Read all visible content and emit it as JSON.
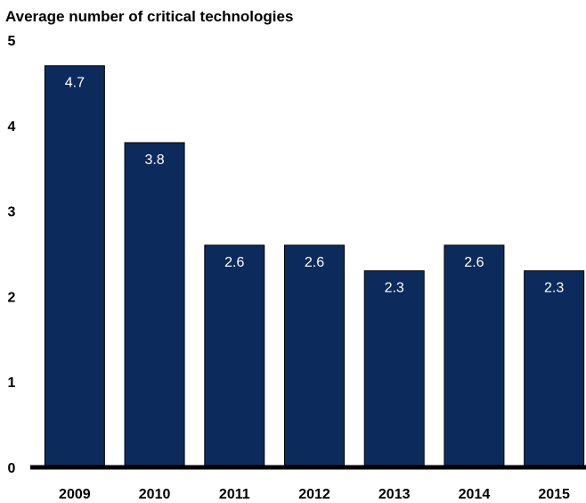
{
  "chart_data": {
    "type": "bar",
    "title": "",
    "ylabel": "Average number of critical technologies",
    "xlabel": "",
    "categories": [
      "2009",
      "2010",
      "2011",
      "2012",
      "2013",
      "2014",
      "2015"
    ],
    "values": [
      4.7,
      3.8,
      2.6,
      2.6,
      2.3,
      2.6,
      2.3
    ],
    "data_labels": [
      "4.7",
      "3.8",
      "2.6",
      "2.6",
      "2.3",
      "2.6",
      "2.3"
    ],
    "ylim": [
      0,
      5
    ],
    "yticks": [
      "0",
      "1",
      "2",
      "3",
      "4",
      "5"
    ],
    "grid": false,
    "bar_color": "#0d2a5c",
    "axis_color": "#000000"
  }
}
